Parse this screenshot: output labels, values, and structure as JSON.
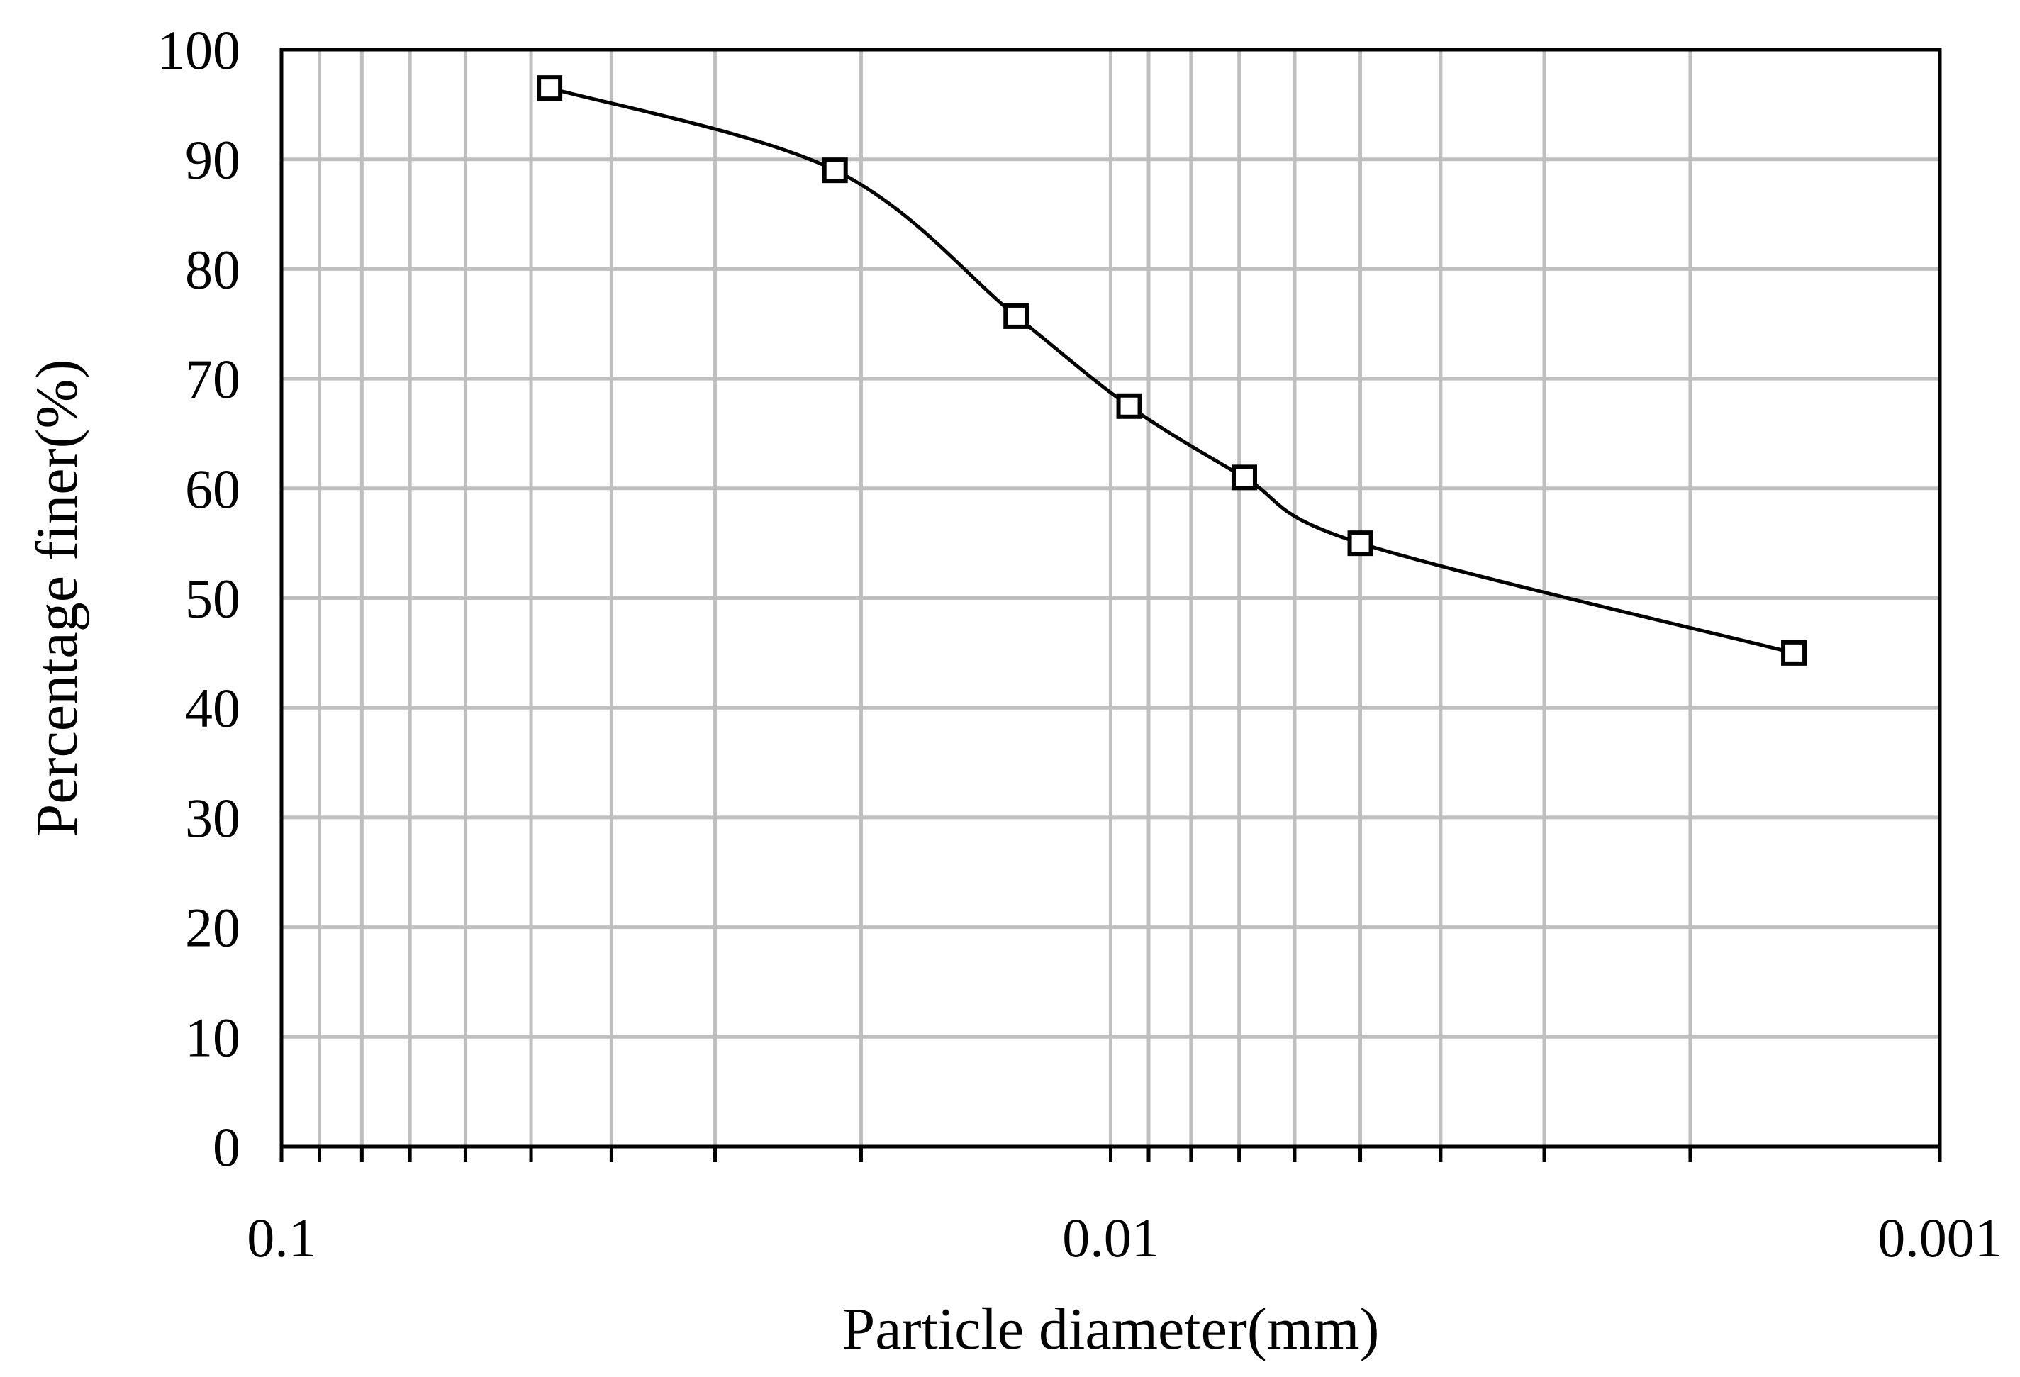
{
  "chart_data": {
    "type": "scatter",
    "title": "",
    "xlabel": "Particle diameter(mm)",
    "ylabel": "Percentage finer(%)",
    "x_scale": "log",
    "x_reversed": true,
    "xlim": [
      0.1,
      0.001
    ],
    "ylim": [
      0,
      100
    ],
    "x_tick_values": [
      0.1,
      0.01,
      0.001
    ],
    "x_tick_labels": [
      "0.1",
      "0.01",
      "0.001"
    ],
    "y_tick_values": [
      0,
      10,
      20,
      30,
      40,
      50,
      60,
      70,
      80,
      90,
      100
    ],
    "y_tick_labels": [
      "0",
      "10",
      "20",
      "30",
      "40",
      "50",
      "60",
      "70",
      "80",
      "90",
      "100"
    ],
    "grid": true,
    "legend": "none",
    "series": [
      {
        "marker": "open-square",
        "line": "smooth",
        "color": "#000000",
        "x": [
          0.0475,
          0.0215,
          0.013,
          0.0095,
          0.0069,
          0.005,
          0.0015
        ],
        "y": [
          96.5,
          89,
          75.7,
          67.5,
          61,
          55,
          45
        ]
      }
    ]
  }
}
